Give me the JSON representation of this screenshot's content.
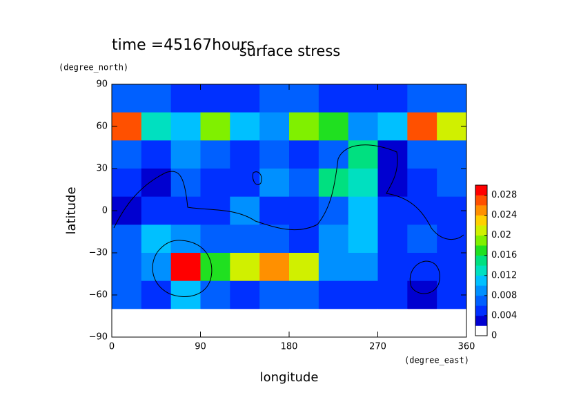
{
  "chart_data": {
    "type": "contour",
    "title": "surface stress",
    "subtitle": "time =45167hours",
    "xlabel": "longitude",
    "ylabel": "latitude",
    "xunit": "(degree_east)",
    "yunit": "(degree_north)",
    "x": [
      15,
      45,
      75,
      105,
      135,
      165,
      195,
      225,
      255,
      285,
      315,
      345
    ],
    "y": [
      80,
      60,
      40,
      20,
      0,
      -20,
      -40,
      -60,
      -80
    ],
    "z": [
      [
        0.006,
        0.006,
        0.005,
        0.004,
        0.005,
        0.006,
        0.006,
        0.005,
        0.004,
        0.005,
        0.006,
        0.006
      ],
      [
        0.026,
        0.012,
        0.01,
        0.018,
        0.01,
        0.008,
        0.018,
        0.016,
        0.008,
        0.01,
        0.026,
        0.02
      ],
      [
        0.006,
        0.004,
        0.008,
        0.006,
        0.004,
        0.006,
        0.004,
        0.006,
        0.014,
        0.002,
        0.006,
        0.006
      ],
      [
        0.004,
        0.002,
        0.006,
        0.004,
        0.004,
        0.008,
        0.006,
        0.014,
        0.012,
        0.002,
        0.004,
        0.006
      ],
      [
        0.002,
        0.004,
        0.004,
        0.004,
        0.008,
        0.004,
        0.004,
        0.006,
        0.01,
        0.004,
        0.004,
        0.004
      ],
      [
        0.006,
        0.01,
        0.008,
        0.006,
        0.006,
        0.006,
        0.004,
        0.008,
        0.01,
        0.004,
        0.006,
        0.004
      ],
      [
        0.006,
        0.008,
        0.028,
        0.016,
        0.02,
        0.024,
        0.02,
        0.008,
        0.008,
        0.004,
        0.004,
        0.004
      ],
      [
        0.006,
        0.004,
        0.01,
        0.006,
        0.004,
        0.006,
        0.006,
        0.004,
        0.004,
        0.004,
        0.002,
        0.004
      ],
      [
        0,
        0,
        0,
        0,
        0,
        0,
        0,
        0,
        0,
        0,
        0,
        0
      ]
    ],
    "xlim": [
      0,
      360
    ],
    "xticks": [
      0,
      90,
      180,
      270,
      360
    ],
    "ylim": [
      -90,
      90
    ],
    "yticks": [
      {
        "value": -90,
        "label": "−90"
      },
      {
        "value": -60,
        "label": "−60"
      },
      {
        "value": -30,
        "label": "−30"
      },
      0,
      30,
      60,
      90
    ],
    "zlim": [
      0,
      0.03
    ],
    "zticks": [
      0,
      0.004,
      0.008,
      0.012,
      0.016,
      0.02,
      0.024,
      0.028
    ],
    "colors": [
      "#ffffff",
      "#0000d0",
      "#0030ff",
      "#0060ff",
      "#0090ff",
      "#00c0ff",
      "#00e0c0",
      "#00e080",
      "#20e020",
      "#80f000",
      "#d0f000",
      "#ffd000",
      "#ff9000",
      "#ff5000",
      "#ff0000"
    ]
  }
}
